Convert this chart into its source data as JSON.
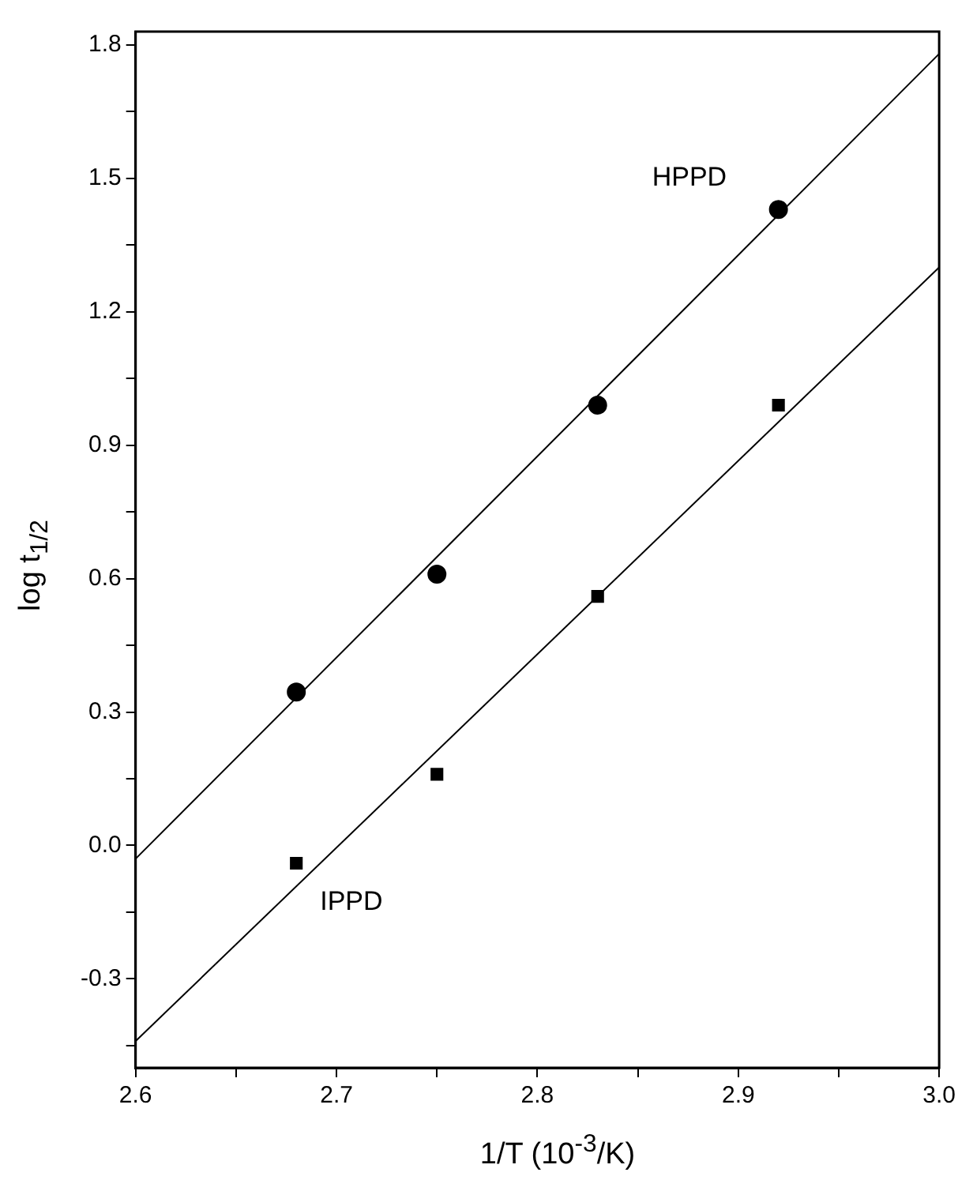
{
  "chart_data": {
    "type": "scatter",
    "xlabel": "1/T (10$^{-3}$/K)",
    "ylabel": "log t$_{1/2}$",
    "xlim": [
      2.6,
      3.0
    ],
    "xticks": [
      2.6,
      {
        "value": 2.65,
        "label": null
      },
      2.7,
      {
        "value": 2.75,
        "label": null
      },
      2.8,
      {
        "value": 2.85,
        "label": null
      },
      2.9,
      {
        "value": 2.95,
        "label": null
      },
      {
        "value": 3.0,
        "label": "3.0"
      }
    ],
    "ylim": [
      -0.5,
      1.83
    ],
    "yticks": [
      {
        "value": -0.45,
        "label": null
      },
      -0.3,
      {
        "value": -0.15,
        "label": null
      },
      {
        "value": 0.0,
        "label": "0.0"
      },
      {
        "value": 0.15,
        "label": null
      },
      0.3,
      {
        "value": 0.45,
        "label": null
      },
      0.6,
      {
        "value": 0.75,
        "label": null
      },
      0.9,
      {
        "value": 1.05,
        "label": null
      },
      1.2,
      {
        "value": 1.35,
        "label": null
      },
      1.5,
      {
        "value": 1.65,
        "label": null
      },
      1.8
    ],
    "grid": false,
    "legend": false,
    "series": [
      {
        "type": "scatter",
        "name": "HPPD",
        "marker": "circle",
        "color": "#000000",
        "x": [
          2.68,
          2.75,
          2.83,
          2.92
        ],
        "values": [
          0.345,
          0.61,
          0.99,
          1.43
        ]
      },
      {
        "type": "scatter",
        "name": "IPPD",
        "marker": "square",
        "color": "#000000",
        "x": [
          2.68,
          2.75,
          2.83,
          2.92
        ],
        "values": [
          -0.04,
          0.16,
          0.56,
          0.99
        ]
      },
      {
        "type": "line",
        "marker": "none",
        "color": "#000000",
        "x": [
          2.6,
          3.0
        ],
        "values": [
          -0.03,
          1.78
        ]
      },
      {
        "type": "line",
        "marker": "none",
        "color": "#000000",
        "x": [
          2.6,
          3.0
        ],
        "values": [
          -0.44,
          1.3
        ]
      }
    ]
  }
}
